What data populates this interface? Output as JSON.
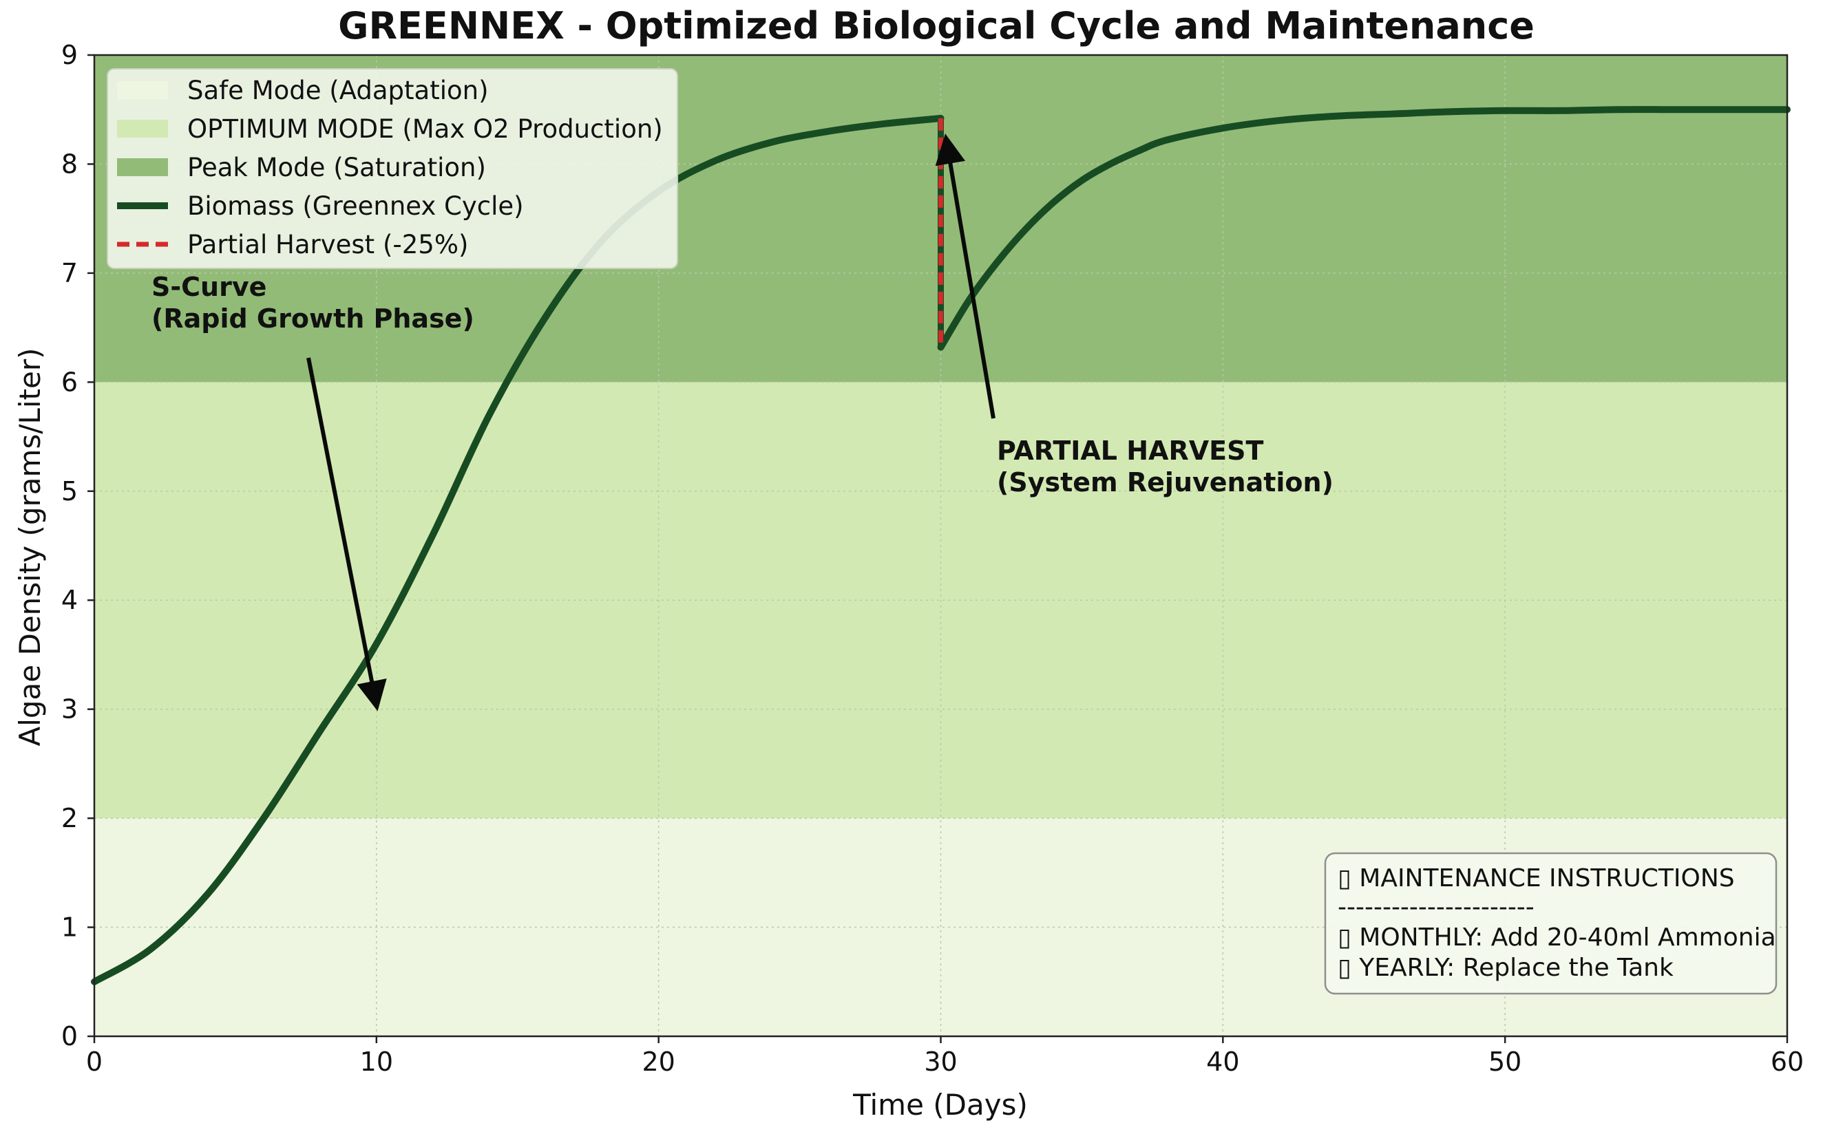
{
  "chart_data": {
    "type": "line",
    "title": "GREENNEX - Optimized Biological Cycle and Maintenance",
    "xlabel": "Time (Days)",
    "ylabel": "Algae Density (grams/Liter)",
    "xlim": [
      0,
      60
    ],
    "ylim": [
      0,
      9
    ],
    "xticks": [
      0,
      10,
      20,
      30,
      40,
      50,
      60
    ],
    "yticks": [
      0,
      1,
      2,
      3,
      4,
      5,
      6,
      7,
      8,
      9
    ],
    "grid": true,
    "legend_position": "top-left",
    "bands": [
      {
        "name": "Safe Mode (Adaptation)",
        "y0": 0,
        "y1": 2,
        "color": "#eef5e0"
      },
      {
        "name": "OPTIMUM MODE (Max O2 Production)",
        "y0": 2,
        "y1": 6,
        "color": "#d3e9b3"
      },
      {
        "name": "Peak Mode (Saturation)",
        "y0": 6,
        "y1": 9,
        "color": "#93bb78"
      }
    ],
    "series": [
      {
        "name": "Biomass (Greennex Cycle)",
        "color": "#174c23",
        "style": "solid",
        "x": [
          0,
          2,
          4,
          6,
          8,
          10,
          12,
          14,
          16,
          18,
          20,
          22,
          24,
          26,
          28,
          30,
          30,
          31,
          32,
          33,
          34,
          35,
          36,
          37,
          38,
          40,
          42,
          44,
          46,
          48,
          50,
          52,
          54,
          56,
          58,
          60
        ],
        "y": [
          0.5,
          0.8,
          1.3,
          2.0,
          2.8,
          3.6,
          4.6,
          5.7,
          6.6,
          7.3,
          7.75,
          8.03,
          8.2,
          8.3,
          8.37,
          8.42,
          6.32,
          6.75,
          7.1,
          7.4,
          7.65,
          7.85,
          8.0,
          8.12,
          8.22,
          8.33,
          8.4,
          8.44,
          8.46,
          8.48,
          8.49,
          8.49,
          8.5,
          8.5,
          8.5,
          8.5
        ]
      },
      {
        "name": "Partial Harvest (-25%)",
        "color": "#d42a2a",
        "style": "dashed",
        "x": [
          30,
          30
        ],
        "y": [
          8.42,
          6.32
        ]
      }
    ],
    "annotations": [
      {
        "lines": [
          "S-Curve",
          "(Rapid Growth Phase)"
        ],
        "arrow_to": [
          10,
          3.1
        ]
      },
      {
        "lines": [
          "PARTIAL HARVEST",
          "(System Rejuvenation)"
        ],
        "arrow_to": [
          30,
          8.25
        ]
      }
    ],
    "note_box": {
      "lines": [
        "▯ MAINTENANCE INSTRUCTIONS",
        "----------------------",
        "▯ MONTHLY: Add 20-40ml Ammonia",
        "▯ YEARLY: Replace the Tank"
      ]
    }
  }
}
